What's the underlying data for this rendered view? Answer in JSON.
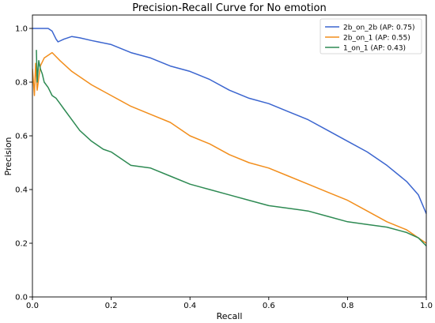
{
  "chart_data": {
    "type": "line",
    "title": "Precision-Recall Curve for No emotion",
    "xlabel": "Recall",
    "ylabel": "Precision",
    "xlim": [
      0.0,
      1.0
    ],
    "ylim": [
      0.0,
      1.05
    ],
    "xticks": [
      "0.0",
      "0.2",
      "0.4",
      "0.6",
      "0.8",
      "1.0"
    ],
    "yticks": [
      "0.0",
      "0.2",
      "0.4",
      "0.6",
      "0.8",
      "1.0"
    ],
    "grid": false,
    "legend_position": "top-right",
    "series": [
      {
        "name": "2b_on_2b (AP: 0.75)",
        "color": "#3b65cf",
        "x": [
          0.0,
          0.02,
          0.04,
          0.05,
          0.06,
          0.065,
          0.08,
          0.1,
          0.12,
          0.15,
          0.2,
          0.25,
          0.3,
          0.35,
          0.4,
          0.45,
          0.5,
          0.55,
          0.6,
          0.65,
          0.7,
          0.75,
          0.8,
          0.85,
          0.9,
          0.95,
          0.98,
          1.0
        ],
        "y": [
          1.0,
          1.0,
          1.0,
          0.99,
          0.96,
          0.95,
          0.96,
          0.97,
          0.965,
          0.955,
          0.94,
          0.91,
          0.89,
          0.86,
          0.84,
          0.81,
          0.77,
          0.74,
          0.72,
          0.69,
          0.66,
          0.62,
          0.58,
          0.54,
          0.49,
          0.43,
          0.38,
          0.31
        ]
      },
      {
        "name": "2b_on_1 (AP: 0.55)",
        "color": "#f28e1c",
        "x": [
          0.0,
          0.005,
          0.008,
          0.012,
          0.02,
          0.03,
          0.05,
          0.07,
          0.1,
          0.15,
          0.2,
          0.25,
          0.3,
          0.35,
          0.4,
          0.45,
          0.5,
          0.55,
          0.6,
          0.65,
          0.7,
          0.75,
          0.8,
          0.85,
          0.9,
          0.95,
          0.98,
          1.0
        ],
        "y": [
          0.85,
          0.75,
          0.87,
          0.77,
          0.86,
          0.89,
          0.91,
          0.88,
          0.84,
          0.79,
          0.75,
          0.71,
          0.68,
          0.65,
          0.6,
          0.57,
          0.53,
          0.5,
          0.48,
          0.45,
          0.42,
          0.39,
          0.36,
          0.32,
          0.28,
          0.25,
          0.22,
          0.2
        ]
      },
      {
        "name": "1_on_1 (AP: 0.43)",
        "color": "#2e8a53",
        "x": [
          0.01,
          0.012,
          0.016,
          0.02,
          0.025,
          0.03,
          0.04,
          0.05,
          0.06,
          0.07,
          0.08,
          0.1,
          0.12,
          0.15,
          0.18,
          0.2,
          0.25,
          0.3,
          0.35,
          0.4,
          0.45,
          0.5,
          0.55,
          0.6,
          0.65,
          0.7,
          0.75,
          0.8,
          0.85,
          0.9,
          0.95,
          0.98,
          1.0
        ],
        "y": [
          0.92,
          0.8,
          0.88,
          0.85,
          0.83,
          0.8,
          0.78,
          0.75,
          0.74,
          0.72,
          0.7,
          0.66,
          0.62,
          0.58,
          0.55,
          0.54,
          0.49,
          0.48,
          0.45,
          0.42,
          0.4,
          0.38,
          0.36,
          0.34,
          0.33,
          0.32,
          0.3,
          0.28,
          0.27,
          0.26,
          0.24,
          0.22,
          0.19
        ]
      }
    ]
  }
}
